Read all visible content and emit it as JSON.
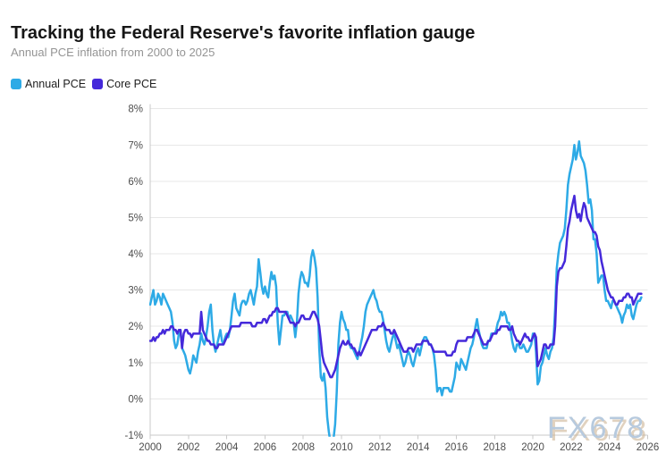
{
  "header": {
    "title": "Tracking the Federal Reserve's favorite inflation gauge",
    "subtitle": "Annual PCE inflation from 2000 to 2025"
  },
  "watermark": "FX678",
  "colors": {
    "grid": "#e7e7e7",
    "axis": "#c9c9c9",
    "tick_label": "#4d4d4d",
    "title": "#161616",
    "subtitle": "#949494",
    "background": "#ffffff"
  },
  "chart_data": {
    "type": "line",
    "title": "Tracking the Federal Reserve's favorite inflation gauge",
    "subtitle": "Annual PCE inflation from 2000 to 2025",
    "xlabel": "",
    "ylabel": "",
    "grid": "horizontal",
    "legend_position": "top-left",
    "xlim": [
      2000,
      2026
    ],
    "ylim": [
      -1,
      8
    ],
    "x_ticks": [
      2000,
      2002,
      2004,
      2006,
      2008,
      2010,
      2012,
      2014,
      2016,
      2018,
      2020,
      2022,
      2024,
      2026
    ],
    "y_tick_values": [
      8,
      7,
      6,
      5,
      4,
      3,
      2,
      1,
      0,
      -1
    ],
    "y_tick_labels": [
      "8%",
      "7%",
      "6%",
      "5%",
      "4%",
      "3%",
      "2%",
      "1%",
      "0%",
      "-1%"
    ],
    "x_start": 2000.0,
    "points_per_year": 12,
    "series": [
      {
        "name": "Annual PCE",
        "color": "#2daae6",
        "values": [
          2.6,
          2.8,
          3.0,
          2.6,
          2.7,
          2.9,
          2.8,
          2.6,
          2.9,
          2.8,
          2.7,
          2.6,
          2.5,
          2.4,
          2.1,
          1.6,
          1.4,
          1.5,
          1.8,
          1.9,
          1.4,
          1.3,
          1.2,
          1.0,
          0.8,
          0.7,
          0.9,
          1.2,
          1.1,
          1.0,
          1.3,
          1.5,
          1.8,
          1.6,
          1.5,
          1.7,
          2.0,
          2.4,
          2.6,
          1.9,
          1.5,
          1.3,
          1.5,
          1.7,
          1.9,
          1.6,
          1.5,
          1.7,
          1.8,
          1.7,
          1.9,
          2.3,
          2.7,
          2.9,
          2.5,
          2.4,
          2.3,
          2.6,
          2.7,
          2.7,
          2.6,
          2.7,
          2.9,
          3.0,
          2.8,
          2.6,
          2.9,
          3.1,
          3.85,
          3.5,
          3.1,
          2.9,
          3.1,
          2.9,
          2.8,
          3.2,
          3.5,
          3.3,
          3.4,
          3.1,
          2.1,
          1.5,
          1.9,
          2.3,
          2.3,
          2.4,
          2.4,
          2.2,
          2.3,
          2.2,
          2.1,
          1.7,
          2.1,
          2.9,
          3.3,
          3.5,
          3.4,
          3.2,
          3.2,
          3.1,
          3.4,
          3.9,
          4.1,
          3.9,
          3.6,
          2.8,
          1.4,
          0.6,
          0.5,
          0.7,
          0.3,
          -0.5,
          -0.9,
          -1.2,
          -1.4,
          -1.1,
          -0.7,
          0.2,
          1.5,
          2.1,
          2.4,
          2.2,
          2.1,
          1.9,
          1.9,
          1.5,
          1.4,
          1.4,
          1.3,
          1.2,
          1.1,
          1.3,
          1.5,
          1.7,
          2.0,
          2.4,
          2.6,
          2.7,
          2.8,
          2.9,
          3.0,
          2.8,
          2.7,
          2.5,
          2.4,
          2.4,
          2.2,
          1.9,
          1.6,
          1.4,
          1.3,
          1.5,
          1.7,
          1.8,
          1.6,
          1.4,
          1.5,
          1.3,
          1.1,
          0.9,
          1.0,
          1.2,
          1.3,
          1.2,
          1.0,
          0.9,
          1.1,
          1.3,
          1.4,
          1.2,
          1.4,
          1.6,
          1.7,
          1.7,
          1.6,
          1.5,
          1.5,
          1.4,
          1.2,
          0.8,
          0.2,
          0.3,
          0.3,
          0.1,
          0.3,
          0.3,
          0.3,
          0.3,
          0.2,
          0.2,
          0.4,
          0.6,
          1.0,
          0.9,
          0.8,
          1.1,
          1.0,
          0.9,
          0.8,
          1.0,
          1.2,
          1.4,
          1.5,
          1.7,
          2.0,
          2.2,
          1.9,
          1.7,
          1.5,
          1.4,
          1.4,
          1.4,
          1.6,
          1.6,
          1.8,
          1.8,
          1.8,
          1.9,
          2.1,
          2.2,
          2.4,
          2.3,
          2.4,
          2.3,
          2.1,
          2.1,
          1.9,
          1.6,
          1.4,
          1.3,
          1.5,
          1.5,
          1.4,
          1.4,
          1.5,
          1.4,
          1.3,
          1.3,
          1.4,
          1.5,
          1.8,
          1.8,
          1.3,
          0.4,
          0.5,
          0.9,
          1.0,
          1.2,
          1.4,
          1.2,
          1.1,
          1.3,
          1.4,
          1.7,
          2.5,
          3.6,
          4.0,
          4.3,
          4.4,
          4.5,
          4.7,
          5.2,
          5.9,
          6.2,
          6.4,
          6.6,
          7.0,
          6.6,
          6.8,
          7.1,
          6.7,
          6.6,
          6.5,
          6.3,
          5.9,
          5.4,
          5.5,
          5.2,
          4.4,
          4.4,
          4.0,
          3.2,
          3.3,
          3.4,
          3.4,
          3.0,
          2.7,
          2.7,
          2.6,
          2.5,
          2.7,
          2.7,
          2.6,
          2.5,
          2.4,
          2.3,
          2.1,
          2.3,
          2.4,
          2.6,
          2.5,
          2.6,
          2.3,
          2.2,
          2.4,
          2.6,
          2.7,
          2.7,
          2.8
        ]
      },
      {
        "name": "Core PCE",
        "color": "#4529da",
        "values": [
          1.6,
          1.6,
          1.7,
          1.6,
          1.7,
          1.7,
          1.8,
          1.8,
          1.9,
          1.8,
          1.9,
          1.9,
          1.9,
          2.0,
          2.0,
          1.9,
          1.9,
          1.8,
          1.9,
          1.9,
          1.4,
          1.8,
          1.9,
          1.9,
          1.8,
          1.8,
          1.7,
          1.8,
          1.8,
          1.8,
          1.8,
          1.8,
          2.4,
          1.9,
          1.8,
          1.7,
          1.6,
          1.6,
          1.5,
          1.5,
          1.5,
          1.4,
          1.4,
          1.5,
          1.5,
          1.5,
          1.5,
          1.6,
          1.7,
          1.8,
          1.9,
          2.0,
          2.0,
          2.0,
          2.0,
          2.0,
          2.0,
          2.1,
          2.1,
          2.1,
          2.1,
          2.1,
          2.1,
          2.1,
          2.0,
          2.0,
          2.0,
          2.1,
          2.1,
          2.1,
          2.1,
          2.2,
          2.2,
          2.1,
          2.2,
          2.3,
          2.3,
          2.4,
          2.4,
          2.5,
          2.5,
          2.4,
          2.4,
          2.4,
          2.4,
          2.4,
          2.3,
          2.2,
          2.1,
          2.1,
          2.1,
          2.0,
          2.1,
          2.1,
          2.2,
          2.3,
          2.3,
          2.2,
          2.2,
          2.2,
          2.2,
          2.3,
          2.4,
          2.4,
          2.3,
          2.2,
          2.0,
          1.6,
          1.2,
          1.0,
          0.9,
          0.8,
          0.7,
          0.6,
          0.6,
          0.7,
          0.8,
          1.0,
          1.2,
          1.4,
          1.5,
          1.6,
          1.5,
          1.5,
          1.6,
          1.5,
          1.5,
          1.4,
          1.4,
          1.3,
          1.2,
          1.3,
          1.2,
          1.3,
          1.4,
          1.5,
          1.6,
          1.7,
          1.8,
          1.9,
          1.9,
          1.9,
          1.9,
          2.0,
          2.0,
          2.0,
          2.1,
          2.0,
          1.9,
          1.9,
          1.9,
          1.8,
          1.8,
          1.9,
          1.8,
          1.7,
          1.6,
          1.5,
          1.4,
          1.3,
          1.3,
          1.3,
          1.4,
          1.4,
          1.4,
          1.3,
          1.4,
          1.5,
          1.5,
          1.5,
          1.5,
          1.6,
          1.6,
          1.6,
          1.6,
          1.5,
          1.5,
          1.4,
          1.3,
          1.3,
          1.3,
          1.3,
          1.3,
          1.3,
          1.3,
          1.3,
          1.2,
          1.2,
          1.2,
          1.2,
          1.3,
          1.3,
          1.5,
          1.6,
          1.6,
          1.6,
          1.6,
          1.6,
          1.6,
          1.7,
          1.7,
          1.7,
          1.7,
          1.8,
          1.9,
          1.9,
          1.8,
          1.7,
          1.6,
          1.5,
          1.5,
          1.5,
          1.6,
          1.6,
          1.7,
          1.8,
          1.8,
          1.8,
          1.9,
          1.9,
          2.0,
          2.0,
          2.0,
          2.0,
          2.0,
          1.9,
          1.9,
          2.0,
          1.8,
          1.7,
          1.6,
          1.6,
          1.5,
          1.6,
          1.7,
          1.8,
          1.7,
          1.7,
          1.6,
          1.6,
          1.7,
          1.8,
          1.7,
          0.9,
          1.0,
          1.1,
          1.3,
          1.5,
          1.5,
          1.4,
          1.4,
          1.5,
          1.5,
          1.5,
          2.0,
          3.1,
          3.5,
          3.6,
          3.6,
          3.7,
          3.8,
          4.2,
          4.7,
          4.9,
          5.2,
          5.4,
          5.6,
          5.2,
          5.0,
          5.1,
          4.9,
          5.2,
          5.4,
          5.3,
          5.0,
          4.9,
          4.8,
          4.7,
          4.6,
          4.6,
          4.5,
          4.2,
          4.1,
          3.8,
          3.6,
          3.4,
          3.2,
          3.0,
          2.9,
          2.8,
          2.8,
          2.7,
          2.6,
          2.6,
          2.7,
          2.7,
          2.7,
          2.8,
          2.8,
          2.9,
          2.9,
          2.8,
          2.8,
          2.6,
          2.7,
          2.8,
          2.9,
          2.9,
          2.9
        ]
      }
    ]
  }
}
